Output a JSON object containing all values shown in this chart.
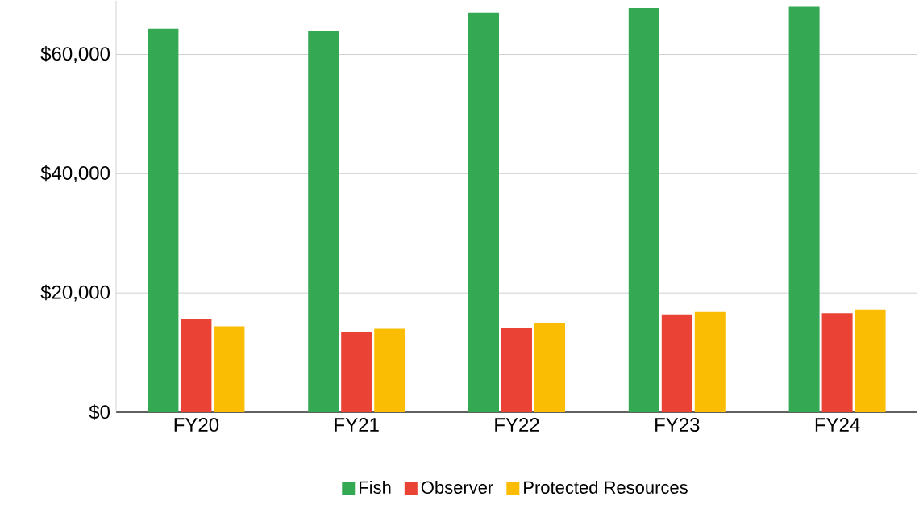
{
  "chart_data": {
    "type": "bar",
    "categories": [
      "FY20",
      "FY21",
      "FY22",
      "FY23",
      "FY24"
    ],
    "series": [
      {
        "name": "Fish",
        "color": "#34a853",
        "values": [
          64300,
          64000,
          67000,
          67800,
          68000
        ]
      },
      {
        "name": "Observer",
        "color": "#ea4335",
        "values": [
          15600,
          13400,
          14200,
          16400,
          16600
        ]
      },
      {
        "name": "Protected Resources",
        "color": "#fbbc04",
        "values": [
          14400,
          14000,
          15000,
          16800,
          17200
        ]
      }
    ],
    "ylim": [
      0,
      69000
    ],
    "yticks": [
      {
        "value": 0,
        "label": "$0"
      },
      {
        "value": 20000,
        "label": "$20,000"
      },
      {
        "value": 40000,
        "label": "$40,000"
      },
      {
        "value": 60000,
        "label": "$60,000"
      }
    ],
    "grid": "y",
    "legend": "bottom"
  }
}
